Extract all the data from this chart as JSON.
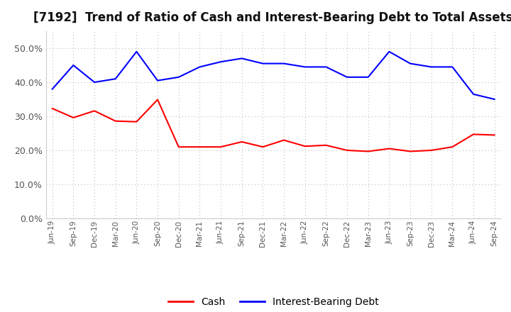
{
  "title": "[7192]  Trend of Ratio of Cash and Interest-Bearing Debt to Total Assets",
  "labels": [
    "Jun-19",
    "Sep-19",
    "Dec-19",
    "Mar-20",
    "Jun-20",
    "Sep-20",
    "Dec-20",
    "Mar-21",
    "Jun-21",
    "Sep-21",
    "Dec-21",
    "Mar-22",
    "Jun-22",
    "Sep-22",
    "Dec-22",
    "Mar-23",
    "Jun-23",
    "Sep-23",
    "Dec-23",
    "Mar-24",
    "Jun-24",
    "Sep-24"
  ],
  "cash": [
    0.323,
    0.296,
    0.316,
    0.286,
    0.284,
    0.349,
    0.21,
    0.21,
    0.21,
    0.225,
    0.21,
    0.23,
    0.212,
    0.215,
    0.2,
    0.197,
    0.205,
    0.197,
    0.2,
    0.21,
    0.247,
    0.245
  ],
  "ibd": [
    0.38,
    0.45,
    0.4,
    0.41,
    0.49,
    0.405,
    0.415,
    0.445,
    0.46,
    0.47,
    0.455,
    0.455,
    0.445,
    0.445,
    0.415,
    0.415,
    0.49,
    0.455,
    0.445,
    0.445,
    0.365,
    0.35
  ],
  "cash_color": "#ff0000",
  "ibd_color": "#0000ff",
  "ylim": [
    0.0,
    0.55
  ],
  "yticks": [
    0.0,
    0.1,
    0.2,
    0.3,
    0.4,
    0.5
  ],
  "bg_color": "#ffffff",
  "grid_color": "#bbbbbb",
  "title_fontsize": 12,
  "legend_labels": [
    "Cash",
    "Interest-Bearing Debt"
  ]
}
